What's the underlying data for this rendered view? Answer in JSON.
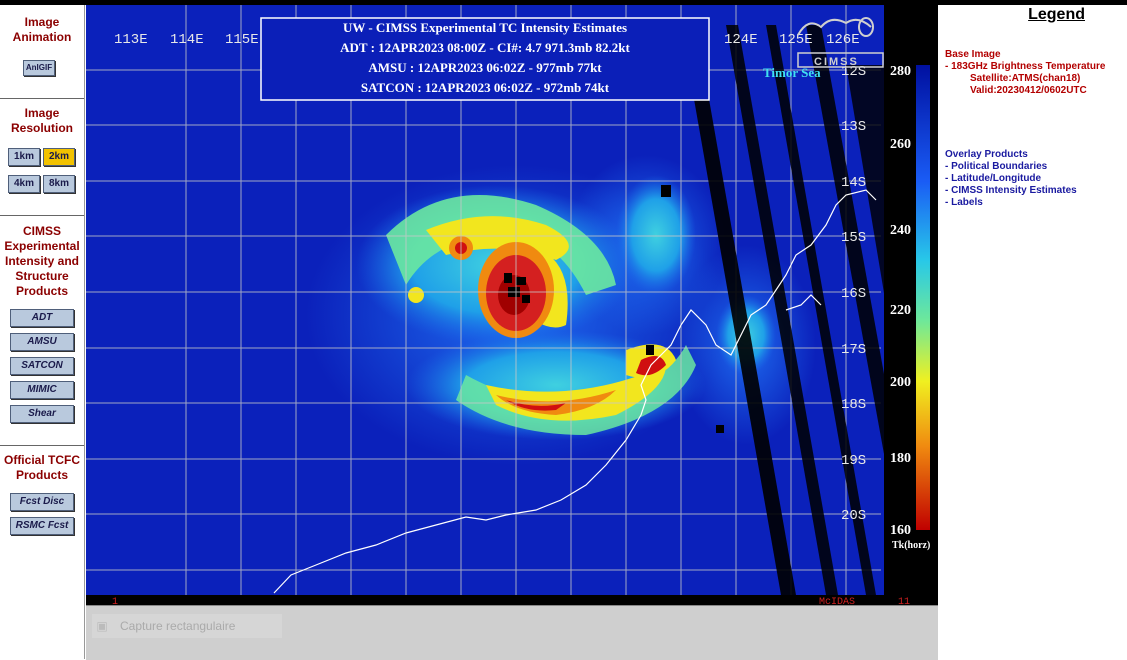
{
  "sidebar": {
    "animation_title": [
      "Image",
      "Animation"
    ],
    "animgif_label": "AnIGIF",
    "resolution_title": [
      "Image",
      "Resolution"
    ],
    "res_buttons": [
      "1km",
      "2km",
      "4km",
      "8km"
    ],
    "selected_resolution": "2km",
    "cimss_title": [
      "CIMSS",
      "Experimental",
      "Intensity and",
      "Structure",
      "Products"
    ],
    "cimss_buttons": [
      "ADT",
      "AMSU",
      "SATCON",
      "MIMIC",
      "Shear"
    ],
    "tcfc_title": [
      "Official TCFC",
      "Products"
    ],
    "tcfc_buttons": [
      "Fcst Disc",
      "RSMC Fcst"
    ]
  },
  "image": {
    "info_box": [
      "UW - CIMSS Experimental TC Intensity Estimates",
      "ADT : 12APR2023 08:00Z -  CI#: 4.7   971.3mb   82.2kt",
      "AMSU : 12APR2023 06:02Z -   977mb   77kt",
      "SATCON : 12APR2023 06:02Z -   972mb   74kt"
    ],
    "lon_labels": [
      "113E",
      "114E",
      "115E",
      "124E",
      "125E",
      "126E"
    ],
    "lat_labels": [
      "12S",
      "13S",
      "14S",
      "15S",
      "16S",
      "17S",
      "18S",
      "19S",
      "20S"
    ],
    "region_label": "Timor Sea",
    "logo_text": "CIMSS",
    "colorbar_ticks": [
      "280",
      "260",
      "240",
      "220",
      "200",
      "180",
      "160"
    ],
    "colorbar_unit": "Tk(horz)",
    "footer_left": "1",
    "footer_right": "McIDAS",
    "footer_far": "11"
  },
  "status": {
    "capture_label": "Capture rectangulaire"
  },
  "legend": {
    "title": "Legend",
    "base_heading": "Base Image",
    "base_lines": [
      "-  183GHz Brightness Temperature",
      "Satellite:ATMS(chan18)",
      "Valid:20230412/0602UTC"
    ],
    "overlay_heading": "Overlay Products",
    "overlay_items": [
      "-  Political Boundaries",
      "-  Latitude/Longitude",
      "-  CIMSS Intensity Estimates",
      "-  Labels"
    ]
  },
  "colors": {
    "sidebar_title": "#8b0000",
    "legend_base": "#b30000",
    "legend_overlay": "#1a1aa0",
    "button_fill": "#b9c9dd",
    "button_active": "#f2c200",
    "grid": "#c8c8c8",
    "info_box_bg": "#0b1fb8"
  }
}
